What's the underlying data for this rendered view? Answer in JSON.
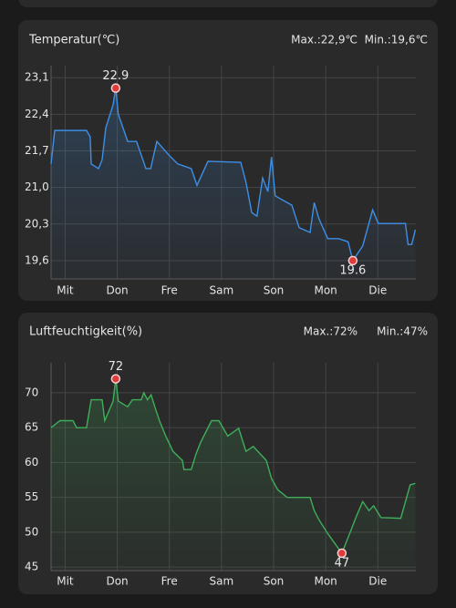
{
  "chart_data": [
    {
      "type": "line",
      "title": "Temperatur(℃)",
      "annotations": [
        "Max.:22,9℃",
        "Min.:19,6℃"
      ],
      "x": [
        0,
        0.07,
        0.68,
        0.75,
        0.77,
        0.91,
        0.98,
        1.05,
        1.19,
        1.24,
        1.29,
        1.47,
        1.64,
        1.82,
        1.91,
        2.03,
        2.26,
        2.43,
        2.69,
        2.8,
        3.01,
        3.64,
        3.74,
        3.85,
        3.95,
        4.06,
        4.16,
        4.23,
        4.3,
        4.62,
        4.76,
        4.97,
        5.05,
        5.14,
        5.31,
        5.52,
        5.7,
        5.79,
        5.98,
        6.17,
        6.28,
        6.8,
        6.85,
        6.92,
        6.99
      ],
      "series": [
        {
          "color": "#3d8fe8",
          "values": [
            21.45,
            22.09,
            22.09,
            21.97,
            21.45,
            21.36,
            21.53,
            22.14,
            22.58,
            22.9,
            22.4,
            21.88,
            21.88,
            21.36,
            21.36,
            21.88,
            21.62,
            21.45,
            21.36,
            21.04,
            21.5,
            21.48,
            21.1,
            20.52,
            20.45,
            21.18,
            20.92,
            21.58,
            20.84,
            20.66,
            20.23,
            20.14,
            20.71,
            20.4,
            20.02,
            20.02,
            19.96,
            19.6,
            19.88,
            20.57,
            20.31,
            20.31,
            19.91,
            19.91,
            20.19
          ]
        }
      ],
      "xlim": [
        0,
        7
      ],
      "xticks": [
        {
          "value": 0.27,
          "label": "Mit"
        },
        {
          "value": 1.27,
          "label": "Don"
        },
        {
          "value": 2.27,
          "label": "Fre"
        },
        {
          "value": 3.27,
          "label": "Sam"
        },
        {
          "value": 4.27,
          "label": "Son"
        },
        {
          "value": 5.27,
          "label": "Mon"
        },
        {
          "value": 6.27,
          "label": "Die"
        }
      ],
      "ylim": [
        19.25,
        23.33
      ],
      "yticks": [
        {
          "value": 19.6,
          "label": "19,6"
        },
        {
          "value": 20.3,
          "label": "20,3"
        },
        {
          "value": 21.0,
          "label": "21,0"
        },
        {
          "value": 21.7,
          "label": "21,7"
        },
        {
          "value": 22.4,
          "label": "22,4"
        },
        {
          "value": 23.1,
          "label": "23,1"
        }
      ],
      "grid": true
    },
    {
      "type": "line",
      "title": "Luftfeuchtigkeit(%)",
      "annotations": [
        "Max.:72%",
        "Min.:47%"
      ],
      "x": [
        0,
        0.17,
        0.42,
        0.49,
        0.68,
        0.77,
        0.98,
        1.03,
        1.19,
        1.24,
        1.29,
        1.47,
        1.56,
        1.73,
        1.78,
        1.85,
        1.92,
        1.99,
        2.08,
        2.2,
        2.34,
        2.52,
        2.55,
        2.69,
        2.78,
        2.87,
        3.08,
        3.22,
        3.39,
        3.6,
        3.74,
        3.88,
        4.13,
        4.23,
        4.35,
        4.53,
        4.97,
        5.05,
        5.14,
        5.31,
        5.58,
        5.75,
        5.87,
        5.98,
        6.1,
        6.19,
        6.33,
        6.71,
        6.8,
        6.89,
        6.99
      ],
      "series": [
        {
          "color": "#3fae5a",
          "values": [
            65,
            66,
            66,
            65,
            65,
            69,
            69,
            66,
            68.8,
            72,
            68.8,
            68,
            69,
            69,
            70,
            69,
            69.7,
            68,
            66,
            63.8,
            61.6,
            60.3,
            59,
            59,
            61.2,
            62.9,
            66,
            66,
            63.8,
            64.9,
            61.6,
            62.3,
            60.3,
            57.7,
            56.1,
            55,
            55,
            53.1,
            51.8,
            49.8,
            47,
            50.2,
            52.5,
            54.4,
            53.1,
            53.8,
            52.1,
            52,
            54.4,
            56.8,
            57
          ]
        }
      ],
      "xlim": [
        0,
        7
      ],
      "xticks": [
        {
          "value": 0.27,
          "label": "Mit"
        },
        {
          "value": 1.27,
          "label": "Don"
        },
        {
          "value": 2.27,
          "label": "Fre"
        },
        {
          "value": 3.27,
          "label": "Sam"
        },
        {
          "value": 4.27,
          "label": "Son"
        },
        {
          "value": 5.27,
          "label": "Mon"
        },
        {
          "value": 6.27,
          "label": "Die"
        }
      ],
      "ylim": [
        44.5,
        74.3
      ],
      "yticks": [
        45,
        50,
        55,
        60,
        65,
        70
      ],
      "grid": true
    }
  ]
}
